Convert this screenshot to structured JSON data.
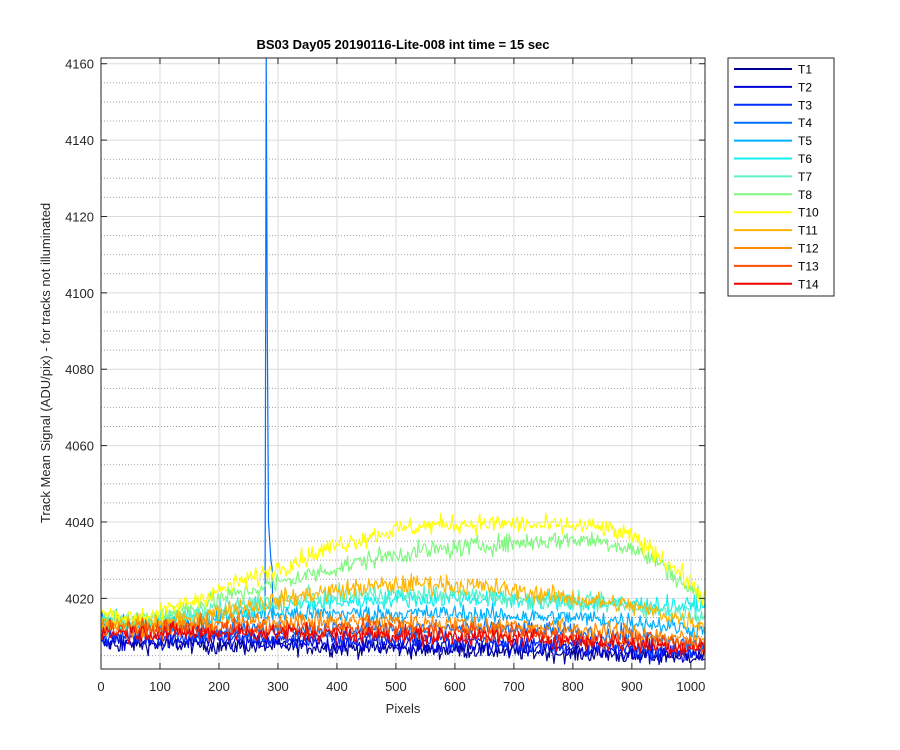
{
  "chart_data": {
    "type": "line",
    "title": "BS03 Day05 20190116-Lite-008 int time = 15 sec",
    "xlabel": "Pixels",
    "ylabel": "Track Mean Signal (ADU/pix) - for tracks not illuminated",
    "xlim": [
      0,
      1024
    ],
    "ylim": [
      4001.5,
      4161.5
    ],
    "x_ticks": [
      0,
      100,
      200,
      300,
      400,
      500,
      600,
      700,
      800,
      900,
      1000
    ],
    "y_ticks": [
      4020,
      4040,
      4060,
      4080,
      4100,
      4120,
      4140,
      4160
    ],
    "grid": true,
    "minor_grid_y": true,
    "legend_position": "outside-top-right",
    "x_sample_points": [
      0,
      50,
      100,
      150,
      200,
      250,
      300,
      350,
      400,
      450,
      500,
      550,
      600,
      650,
      700,
      750,
      800,
      850,
      900,
      950,
      1000,
      1024
    ],
    "series": [
      {
        "name": "T1",
        "color": "#00008f",
        "noise": 2.2,
        "values": [
          4008,
          4008,
          4008,
          4008,
          4007.5,
          4007.5,
          4007.5,
          4007.5,
          4007,
          4007,
          4007,
          4006.5,
          4006.5,
          4006.5,
          4006,
          4006,
          4005.5,
          4005.5,
          4005,
          4005,
          4005,
          4005
        ]
      },
      {
        "name": "T2",
        "color": "#0000d8",
        "noise": 2.2,
        "values": [
          4009,
          4008.5,
          4008.5,
          4008.5,
          4008.5,
          4008.5,
          4008,
          4008,
          4008,
          4008,
          4008,
          4007.5,
          4007.5,
          4007.5,
          4007,
          4007,
          4006.5,
          4006.5,
          4006,
          4005.5,
          4005,
          4005
        ]
      },
      {
        "name": "T3",
        "color": "#0030ff",
        "noise": 2.2,
        "values": [
          4010,
          4010,
          4010,
          4010,
          4010,
          4010,
          4009.5,
          4009.5,
          4009.5,
          4009.5,
          4009.5,
          4009,
          4009,
          4009,
          4008.5,
          4008,
          4008,
          4007.5,
          4007,
          4006.5,
          4006,
          4006
        ]
      },
      {
        "name": "T4",
        "color": "#0070ff",
        "noise": 2.3,
        "values": [
          4014,
          4013,
          4012,
          4012,
          4012,
          4012,
          4012,
          4012,
          4012,
          4012,
          4012,
          4012,
          4012,
          4012,
          4012,
          4011.5,
          4011,
          4010.5,
          4010,
          4009,
          4008,
          4008
        ],
        "spike": {
          "x": [
            279,
            280,
            281,
            282,
            283,
            284,
            285,
            286,
            287,
            288,
            289,
            290
          ],
          "y": [
            4018,
            4165,
            4165,
            4090,
            4060,
            4040,
            4072,
            4035,
            4058,
            4030,
            4045,
            4028
          ]
        }
      },
      {
        "name": "T5",
        "color": "#00b0ff",
        "noise": 2.3,
        "values": [
          4014,
          4013.5,
          4013,
          4014,
          4015,
          4015.5,
          4016,
          4016,
          4016,
          4016,
          4016,
          4016,
          4016,
          4015.5,
          4015.5,
          4015,
          4015,
          4014.5,
          4014,
          4013,
          4012,
          4012
        ]
      },
      {
        "name": "T6",
        "color": "#10f0f0",
        "noise": 2.3,
        "values": [
          4013,
          4013,
          4014,
          4015,
          4016,
          4017,
          4018,
          4018.5,
          4019,
          4019.5,
          4020,
          4020,
          4020,
          4020,
          4019.5,
          4019.5,
          4019,
          4019,
          4018.5,
          4018,
          4018,
          4018
        ]
      },
      {
        "name": "T7",
        "color": "#60f0c8",
        "noise": 2.3,
        "values": [
          4013,
          4013.5,
          4014.5,
          4016,
          4017.5,
          4018.5,
          4019.5,
          4020,
          4020.5,
          4021,
          4021,
          4021,
          4021,
          4020.5,
          4020,
          4019.5,
          4019,
          4018.5,
          4018,
          4017,
          4016,
          4016
        ]
      },
      {
        "name": "T8",
        "color": "#80f880",
        "noise": 2.4,
        "values": [
          4015,
          4014.5,
          4015.5,
          4017.5,
          4020,
          4022,
          4024,
          4026,
          4028,
          4030,
          4031.5,
          4032.5,
          4033,
          4034,
          4034.5,
          4035,
          4035.5,
          4035,
          4033,
          4029,
          4022,
          4020
        ]
      },
      {
        "name": "T10",
        "color": "#ffff00",
        "noise": 2.4,
        "values": [
          4016,
          4015,
          4016,
          4019,
          4022,
          4025,
          4028,
          4031,
          4034,
          4036,
          4038,
          4039,
          4039.5,
          4039.5,
          4039.5,
          4039,
          4039,
          4038.5,
          4036,
          4031,
          4024,
          4020
        ]
      },
      {
        "name": "T11",
        "color": "#ffb400",
        "noise": 2.4,
        "values": [
          4013,
          4013,
          4013.5,
          4014.5,
          4016.5,
          4018,
          4019.5,
          4021,
          4022,
          4023,
          4023.5,
          4024,
          4023.5,
          4023,
          4022,
          4021,
          4020,
          4019,
          4018,
          4016,
          4014,
          4013
        ]
      },
      {
        "name": "T12",
        "color": "#ff8c00",
        "noise": 2.3,
        "values": [
          4013,
          4012.5,
          4012.5,
          4013,
          4013.5,
          4014,
          4014,
          4014,
          4014,
          4014,
          4014,
          4013.5,
          4013.5,
          4013,
          4013,
          4012.5,
          4012,
          4011.5,
          4011,
          4010,
          4009,
          4009
        ]
      },
      {
        "name": "T13",
        "color": "#ff4a00",
        "noise": 2.3,
        "values": [
          4012,
          4012,
          4012,
          4012,
          4012,
          4012,
          4012,
          4012,
          4012,
          4012,
          4012,
          4011.5,
          4011.5,
          4011,
          4011,
          4010.5,
          4010,
          4009.5,
          4009,
          4008.5,
          4008,
          4008
        ]
      },
      {
        "name": "T14",
        "color": "#ee0000",
        "noise": 2.3,
        "values": [
          4011,
          4011,
          4011,
          4011,
          4011,
          4011,
          4011,
          4011,
          4010.5,
          4010.5,
          4010.5,
          4010,
          4010,
          4010,
          4009.5,
          4009.5,
          4009,
          4008.5,
          4008,
          4007.5,
          4007,
          4007
        ]
      }
    ]
  }
}
